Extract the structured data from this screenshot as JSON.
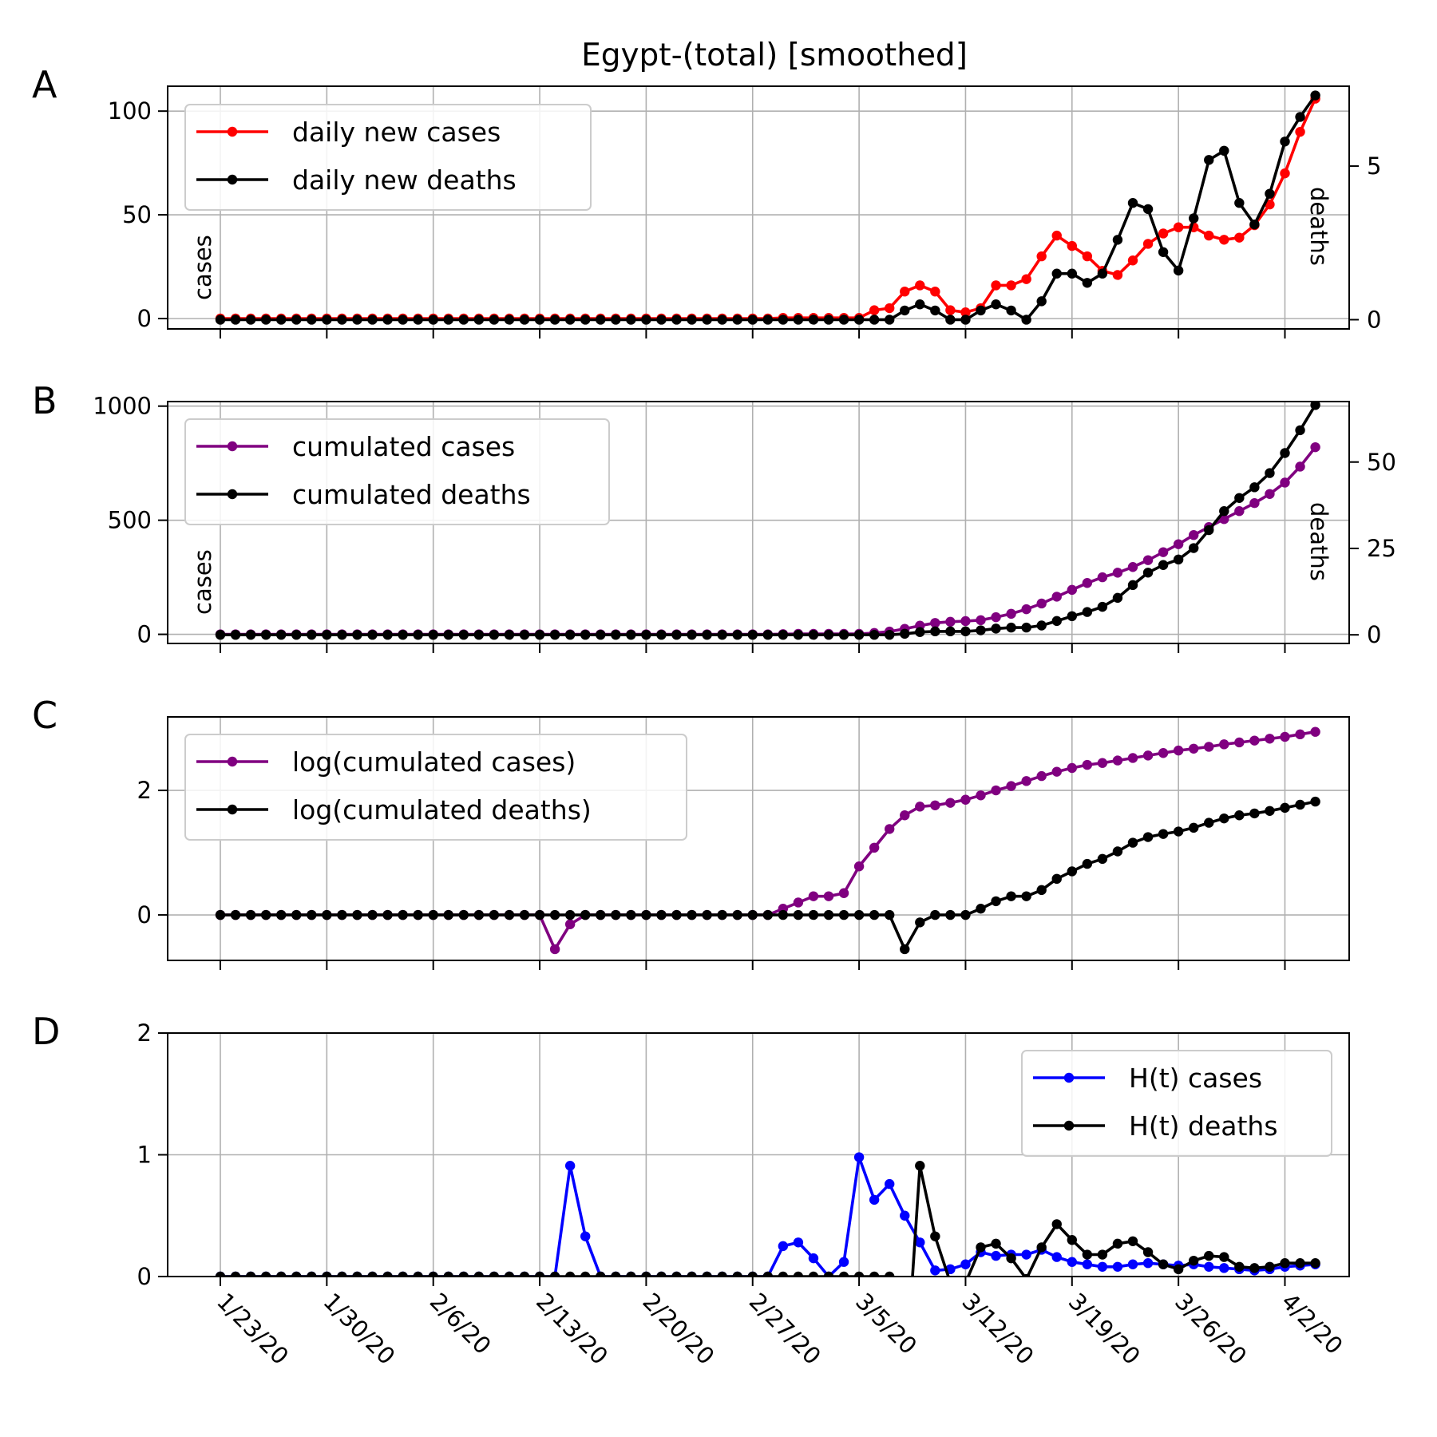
{
  "title": "Egypt-(total) [smoothed]",
  "dates": [
    "1/23/20",
    "1/30/20",
    "2/6/20",
    "2/13/20",
    "2/20/20",
    "2/27/20",
    "3/5/20",
    "3/12/20",
    "3/19/20",
    "3/26/20",
    "4/2/20"
  ],
  "colors": {
    "red": "#ff0000",
    "black": "#000000",
    "purple": "#800080",
    "blue": "#0000ff"
  },
  "chart_data": [
    {
      "panel": "A",
      "type": "line",
      "ylabel": "cases",
      "y2label": "deaths",
      "ylim": [
        -5,
        112
      ],
      "y2lim": [
        -0.3,
        7.6
      ],
      "yticks": [
        0,
        50,
        100
      ],
      "y2ticks": [
        0,
        5
      ],
      "legend": "top-left",
      "grid": true,
      "series": [
        {
          "name": "daily new cases",
          "color": "#ff0000",
          "axis": "left",
          "values": [
            0,
            0,
            0,
            0,
            0,
            0,
            0,
            0,
            0,
            0,
            0,
            0,
            0,
            0,
            0,
            0,
            0,
            0,
            0,
            0,
            0,
            0,
            0,
            0,
            0,
            0,
            0,
            0,
            0,
            0,
            0,
            0,
            0,
            0,
            0,
            0,
            0,
            0.3,
            0.3,
            0.3,
            0.3,
            0.3,
            0.3,
            4,
            5,
            13,
            16,
            13,
            4,
            3,
            5,
            16,
            16,
            19,
            30,
            40,
            35,
            30,
            23,
            21,
            28,
            36,
            41,
            44,
            44,
            40,
            38,
            39,
            45,
            55,
            70,
            90,
            106
          ]
        },
        {
          "name": "daily new deaths",
          "color": "#000000",
          "axis": "right",
          "values": [
            0,
            0,
            0,
            0,
            0,
            0,
            0,
            0,
            0,
            0,
            0,
            0,
            0,
            0,
            0,
            0,
            0,
            0,
            0,
            0,
            0,
            0,
            0,
            0,
            0,
            0,
            0,
            0,
            0,
            0,
            0,
            0,
            0,
            0,
            0,
            0,
            0,
            0,
            0,
            0,
            0,
            0,
            0,
            0,
            0,
            0.3,
            0.5,
            0.3,
            0,
            0,
            0.3,
            0.5,
            0.3,
            0,
            0.6,
            1.5,
            1.5,
            1.2,
            1.5,
            2.6,
            3.8,
            3.6,
            2.2,
            1.6,
            3.3,
            5.2,
            5.5,
            3.8,
            3.1,
            4.1,
            5.8,
            6.6,
            7.3
          ]
        }
      ]
    },
    {
      "panel": "B",
      "type": "line",
      "ylabel": "cases",
      "y2label": "deaths",
      "ylim": [
        -40,
        1020
      ],
      "y2lim": [
        -2.5,
        67.5
      ],
      "yticks": [
        0,
        500,
        1000
      ],
      "y2ticks": [
        0,
        25,
        50
      ],
      "legend": "top-left",
      "grid": true,
      "series": [
        {
          "name": "cumulated cases",
          "color": "#800080",
          "axis": "left",
          "values": [
            0,
            0,
            0,
            0,
            0,
            0,
            0,
            0,
            0,
            0,
            0,
            0,
            0,
            0,
            0,
            0,
            0,
            0,
            0,
            0,
            0,
            0,
            0,
            0,
            0,
            0,
            0,
            0,
            0,
            0,
            0,
            0,
            0,
            0,
            0,
            0,
            0,
            1,
            2,
            2,
            2,
            2,
            2,
            6,
            12,
            24,
            38,
            50,
            55,
            58,
            62,
            75,
            90,
            110,
            135,
            165,
            195,
            225,
            250,
            270,
            295,
            325,
            360,
            395,
            435,
            470,
            505,
            540,
            575,
            615,
            665,
            735,
            820
          ]
        },
        {
          "name": "cumulated deaths",
          "color": "#000000",
          "axis": "right",
          "values": [
            0,
            0,
            0,
            0,
            0,
            0,
            0,
            0,
            0,
            0,
            0,
            0,
            0,
            0,
            0,
            0,
            0,
            0,
            0,
            0,
            0,
            0,
            0,
            0,
            0,
            0,
            0,
            0,
            0,
            0,
            0,
            0,
            0,
            0,
            0,
            0,
            0,
            0,
            0,
            0,
            0,
            0,
            0,
            0,
            0,
            0.3,
            0.8,
            1,
            1,
            1,
            1.3,
            1.8,
            2.1,
            2.1,
            2.7,
            4,
            5.4,
            6.6,
            8.1,
            10.7,
            14.4,
            18,
            20.2,
            21.8,
            25.1,
            30.3,
            35.8,
            39.6,
            42.7,
            46.8,
            52.6,
            59.2,
            66.5
          ]
        }
      ]
    },
    {
      "panel": "C",
      "type": "line",
      "ylim": [
        -0.73,
        3.18
      ],
      "yticks": [
        0,
        2
      ],
      "legend": "top-left",
      "grid": true,
      "series": [
        {
          "name": "log(cumulated cases)",
          "color": "#800080",
          "axis": "left",
          "values": [
            0,
            0,
            0,
            0,
            0,
            0,
            0,
            0,
            0,
            0,
            0,
            0,
            0,
            0,
            0,
            0,
            0,
            0,
            0,
            0,
            0,
            0,
            -0.55,
            -0.15,
            0,
            0,
            0,
            0,
            0,
            0,
            0,
            0,
            0,
            0,
            0,
            0,
            0,
            0.1,
            0.2,
            0.3,
            0.3,
            0.35,
            0.78,
            1.08,
            1.38,
            1.6,
            1.74,
            1.76,
            1.8,
            1.85,
            1.92,
            2.0,
            2.07,
            2.15,
            2.23,
            2.3,
            2.36,
            2.41,
            2.44,
            2.48,
            2.52,
            2.56,
            2.6,
            2.64,
            2.67,
            2.7,
            2.74,
            2.77,
            2.8,
            2.83,
            2.86,
            2.9,
            2.94
          ]
        },
        {
          "name": "log(cumulated deaths)",
          "color": "#000000",
          "axis": "left",
          "values": [
            0,
            0,
            0,
            0,
            0,
            0,
            0,
            0,
            0,
            0,
            0,
            0,
            0,
            0,
            0,
            0,
            0,
            0,
            0,
            0,
            0,
            0,
            0,
            0,
            0,
            0,
            0,
            0,
            0,
            0,
            0,
            0,
            0,
            0,
            0,
            0,
            0,
            0,
            0,
            0,
            0,
            0,
            0,
            0,
            0,
            -0.55,
            -0.12,
            0,
            0,
            0,
            0.1,
            0.22,
            0.3,
            0.3,
            0.4,
            0.58,
            0.7,
            0.82,
            0.9,
            1.02,
            1.16,
            1.25,
            1.3,
            1.34,
            1.4,
            1.48,
            1.55,
            1.6,
            1.63,
            1.67,
            1.72,
            1.77,
            1.82
          ]
        }
      ]
    },
    {
      "panel": "D",
      "type": "line",
      "ylim": [
        0,
        2
      ],
      "yticks": [
        0,
        1,
        2
      ],
      "legend": "top-right",
      "grid": true,
      "series": [
        {
          "name": "H(t) cases",
          "color": "#0000ff",
          "axis": "left",
          "values": [
            0,
            0,
            0,
            0,
            0,
            0,
            0,
            0,
            0,
            0,
            0,
            0,
            0,
            0,
            0,
            0,
            0,
            0,
            0,
            0,
            0,
            0,
            0,
            0.91,
            0.33,
            0,
            0,
            0,
            0,
            0,
            0,
            0,
            0,
            0,
            0,
            0,
            0,
            0.25,
            0.28,
            0.15,
            0,
            0.12,
            0.98,
            0.63,
            0.76,
            0.5,
            0.28,
            0.05,
            0.06,
            0.1,
            0.2,
            0.17,
            0.18,
            0.18,
            0.22,
            0.16,
            0.12,
            0.1,
            0.08,
            0.08,
            0.1,
            0.11,
            0.1,
            0.09,
            0.1,
            0.08,
            0.07,
            0.06,
            0.05,
            0.06,
            0.08,
            0.09,
            0.1
          ]
        },
        {
          "name": "H(t) deaths",
          "color": "#000000",
          "axis": "left",
          "values": [
            0,
            0,
            0,
            0,
            0,
            0,
            0,
            0,
            0,
            0,
            0,
            0,
            0,
            0,
            0,
            0,
            0,
            0,
            0,
            0,
            0,
            0,
            0,
            0,
            0,
            0,
            0,
            0,
            0,
            0,
            0,
            0,
            0,
            0,
            0,
            0,
            0,
            0,
            0,
            0,
            0,
            0,
            0,
            0,
            0,
            -0.95,
            0.91,
            0.33,
            -0.05,
            -0.05,
            0.24,
            0.27,
            0.15,
            -0.02,
            0.24,
            0.43,
            0.3,
            0.18,
            0.18,
            0.27,
            0.29,
            0.2,
            0.1,
            0.06,
            0.13,
            0.17,
            0.16,
            0.08,
            0.07,
            0.08,
            0.11,
            0.11,
            0.11
          ]
        }
      ]
    }
  ]
}
